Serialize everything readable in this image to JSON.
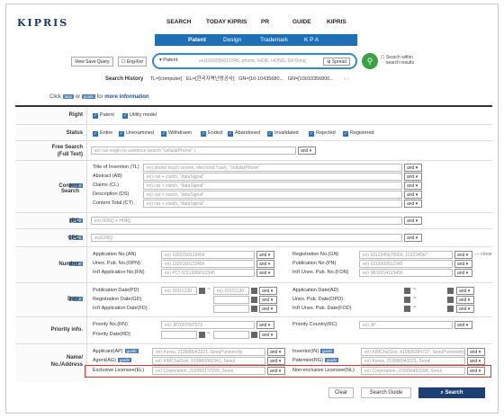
{
  "logo": "KIPRIS",
  "topnav": [
    "SEARCH",
    "TODAY KIPRIS",
    "PR",
    "GUIDE",
    "KIPRIS"
  ],
  "subnav": [
    "Patent",
    "Design",
    "Trademark",
    "K P A"
  ],
  "query": {
    "view_saved": "View Save Query",
    "eng_kor": "Eng-Kor",
    "type": "Patent",
    "placeholder": "ex)1020050012345, phone, HIDE, HONG, Gil Dong",
    "spread": "Spread",
    "within": "Search within search results"
  },
  "history": {
    "label": "Search History",
    "items": [
      "TL=[computer]",
      "EL=[한국지역난방공사]",
      "GN=[10-10435680...",
      "GN=[10010356800..."
    ]
  },
  "hint": {
    "pre": "Click",
    "tag1": "tags",
    "mid": "or",
    "tag2": "guide",
    "post": "for",
    "more": "more information"
  },
  "right": {
    "label": "Right",
    "options": [
      "Patent",
      "Utility model"
    ]
  },
  "status": {
    "label": "Status",
    "options": [
      "Entire",
      "Unexamined",
      "Withdrawn",
      "Ended",
      "Abandoned",
      "Invalidated",
      "Rejected",
      "Registered"
    ]
  },
  "free_search": {
    "label1": "Free Search",
    "label2": "(Full Text)",
    "placeholder": "ex) car engin  (in sentence search  \"cellularPhone\" )",
    "op": "and"
  },
  "content_search": {
    "label": "Content Search",
    "fields": [
      {
        "name": "Title of Invention (TL)",
        "ph": "ex) phone touch screen, electronic*cash, \"cellularPhone\""
      },
      {
        "name": "Abstract (AB)",
        "ph": "ex) car + clutch, \"dataSignal\""
      },
      {
        "name": "Claims (CL)",
        "ph": "ex) car + clutch, \"dataSignal\""
      },
      {
        "name": "Description (DS)",
        "ph": "ex) car + clutch, \"dataSignal\""
      },
      {
        "name": "Content Total (CT)",
        "ph": "ex) car + clutch, \"dataSignal\""
      }
    ],
    "op": "and"
  },
  "ipc": {
    "label": "IPC",
    "ph": "ex) G06Q + H04Q",
    "op": "and"
  },
  "cpc": {
    "label": "CPC",
    "ph": "ex)G06Q",
    "op": "and"
  },
  "number": {
    "label": "Number",
    "left": [
      {
        "name": "Application No.(AN)",
        "ph": "ex) 1020150123456"
      },
      {
        "name": "Unex. Pub. No.(OPN)",
        "ph": "ex) 1020160123456"
      },
      {
        "name": "Int'l Application No.(FN)",
        "ph": "ex) PCT/US1995/012345"
      }
    ],
    "right": [
      {
        "name": "Registration No.(GN)",
        "ph": "ex) 1012345670000, 101234567"
      },
      {
        "name": "Publication No.(PN)",
        "ph": "ex) 1019990012345"
      },
      {
        "name": "Int'l Unex. Pub. No.(FON)",
        "ph": "ex) WO2014123456"
      }
    ],
    "close": "— close",
    "op": "and"
  },
  "date": {
    "label": "Date",
    "left": [
      {
        "name": "Publication Date(PD)",
        "from": "ex) 20101130",
        "to": "ex) 20101130"
      },
      {
        "name": "Registration Date(GD)",
        "from": "",
        "to": ""
      },
      {
        "name": "Int'l Application Date(FD)",
        "from": "",
        "to": ""
      }
    ],
    "right": [
      {
        "name": "Application Date(AD)"
      },
      {
        "name": "Unex. Pub. Date(OPD)"
      },
      {
        "name": "Int'l Unex. Pub. Date(FOD)"
      }
    ],
    "op": "and"
  },
  "priority": {
    "label": "Priority info.",
    "fields": [
      {
        "name": "Priority No.(RN)",
        "ph": "ex) JP2007097079"
      },
      {
        "name": "Priority Date(RD)",
        "ph": ""
      }
    ],
    "country": {
      "name": "Priority Country(RC)",
      "ph": "ex) JP"
    },
    "op": "and"
  },
  "name": {
    "label1": "Name/",
    "label2": "No./Address",
    "left": [
      {
        "name": "Applicant(AP)",
        "ph": "ex) Korea, 219990043221, Seoul*university"
      },
      {
        "name": "Agent(AG)",
        "ph": "ex) KIMChulSoo, 919980000341, Seoul"
      },
      {
        "name": "Exclusive Licensee(EL)",
        "ph": "ex) Corporation, 219950177999, Seoul"
      }
    ],
    "right": [
      {
        "name": "Inventor(IN)",
        "ph": "ex) KIMChulSoo, 419990384727, Seoul*university"
      },
      {
        "name": "Patentee(RG)",
        "ph": "ex) Korea, 219990043221, Seoul"
      },
      {
        "name": "Non-exclusive Licensee(NL)",
        "ph": "ex) Corporation, 220050461598, Seoul"
      }
    ],
    "op": "and"
  },
  "actions": {
    "clear": "Clear",
    "guide": "Search Guide",
    "search": "Search"
  },
  "colors": {
    "nav_blue": "#1f6fb6",
    "go_green": "#3aa243",
    "highlight_red": "#e03030",
    "search_btn": "#1e3f75"
  }
}
